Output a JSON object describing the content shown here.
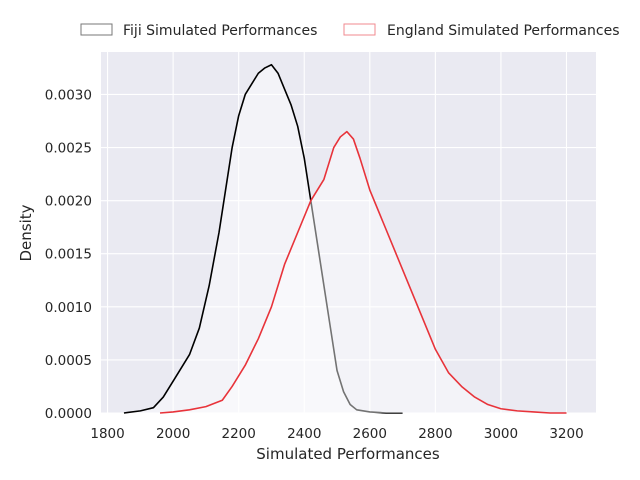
{
  "chart_data": {
    "type": "area",
    "title": "",
    "xlabel": "Simulated Performances",
    "ylabel": "Density",
    "xlim": [
      1780,
      3290
    ],
    "ylim": [
      0,
      0.0034
    ],
    "x_ticks": [
      1800,
      2000,
      2200,
      2400,
      2600,
      2800,
      3000,
      3200
    ],
    "y_ticks": [
      0.0,
      0.0005,
      0.001,
      0.0015,
      0.002,
      0.0025,
      0.003
    ],
    "y_tick_labels": [
      "0.0000",
      "0.0005",
      "0.0010",
      "0.0015",
      "0.0020",
      "0.0025",
      "0.0030"
    ],
    "grid": true,
    "legend_position": "top",
    "background_color": "#eaeaf2",
    "grid_color": "#ffffff",
    "series": [
      {
        "name": "Fiji Simulated Performances",
        "color": "#000000",
        "x": [
          1850,
          1900,
          1940,
          1970,
          2000,
          2020,
          2050,
          2080,
          2110,
          2140,
          2160,
          2180,
          2200,
          2220,
          2240,
          2260,
          2280,
          2300,
          2320,
          2340,
          2360,
          2380,
          2400,
          2420,
          2440,
          2460,
          2480,
          2500,
          2520,
          2540,
          2560,
          2600,
          2650,
          2700
        ],
        "y": [
          0.0,
          2e-05,
          5e-05,
          0.00015,
          0.0003,
          0.0004,
          0.00055,
          0.0008,
          0.0012,
          0.0017,
          0.0021,
          0.0025,
          0.0028,
          0.003,
          0.0031,
          0.0032,
          0.00325,
          0.00328,
          0.0032,
          0.00305,
          0.0029,
          0.0027,
          0.0024,
          0.002,
          0.0016,
          0.0012,
          0.0008,
          0.0004,
          0.0002,
          8e-05,
          3e-05,
          1e-05,
          0.0,
          0.0
        ]
      },
      {
        "name": "England Simulated Performances",
        "color": "#e8333a",
        "x": [
          1960,
          2000,
          2050,
          2100,
          2150,
          2180,
          2220,
          2260,
          2300,
          2340,
          2380,
          2420,
          2460,
          2490,
          2510,
          2530,
          2550,
          2570,
          2600,
          2640,
          2680,
          2720,
          2760,
          2800,
          2840,
          2880,
          2920,
          2960,
          3000,
          3050,
          3100,
          3150,
          3200
        ],
        "y": [
          0.0,
          1e-05,
          3e-05,
          6e-05,
          0.00012,
          0.00025,
          0.00045,
          0.0007,
          0.001,
          0.0014,
          0.0017,
          0.002,
          0.0022,
          0.0025,
          0.0026,
          0.00265,
          0.00258,
          0.0024,
          0.0021,
          0.0018,
          0.0015,
          0.0012,
          0.0009,
          0.0006,
          0.00038,
          0.00025,
          0.00015,
          8e-05,
          4e-05,
          2e-05,
          1e-05,
          0.0,
          0.0
        ]
      }
    ]
  }
}
